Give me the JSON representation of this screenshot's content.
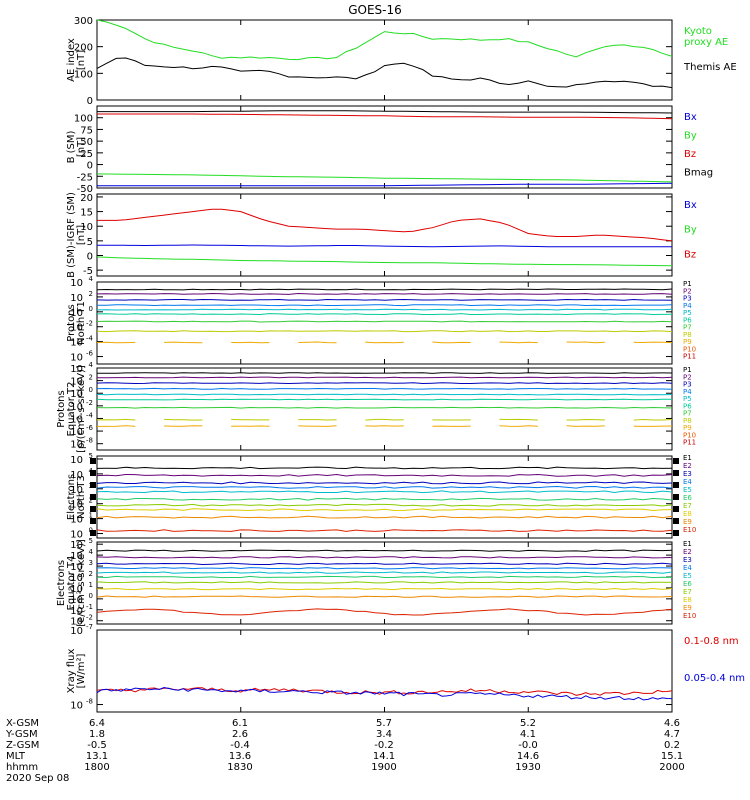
{
  "title": "GOES-16",
  "colors": {
    "black": "#000000",
    "blue": "#0000dd",
    "green": "#22dd22",
    "red": "#dd0000",
    "P": [
      "#000000",
      "#660077",
      "#0000bb",
      "#0077ee",
      "#00bbcc",
      "#00cc99",
      "#33cc33",
      "#bbcc00",
      "#eeaa00",
      "#ee5500",
      "#cc0000"
    ],
    "E": [
      "#000000",
      "#660077",
      "#0000bb",
      "#0077ee",
      "#00bbcc",
      "#22cc66",
      "#88cc00",
      "#ddcc00",
      "#ee8800",
      "#dd2200",
      "#aa0000"
    ]
  },
  "chart_data": [
    {
      "type": "line",
      "panel": "ae",
      "ylabel": "AE index\n[nT]",
      "ylim": [
        0,
        300
      ],
      "yticks": [
        "0",
        "100",
        "200",
        "300"
      ],
      "ytick_values": [
        0,
        100,
        200,
        300
      ],
      "x": [
        0,
        5,
        10,
        15,
        20,
        25,
        30,
        35,
        40,
        45,
        50,
        55,
        60,
        65,
        70,
        75,
        80,
        85,
        90,
        95,
        100,
        105,
        110,
        115,
        120
      ],
      "series": [
        {
          "name": "Kyoto\nproxy AE",
          "color": "green",
          "values": [
            300,
            280,
            230,
            200,
            185,
            160,
            160,
            160,
            155,
            155,
            160,
            205,
            255,
            250,
            230,
            230,
            225,
            230,
            215,
            190,
            160,
            200,
            210,
            195,
            160
          ]
        },
        {
          "name": "Themis AE",
          "color": "black",
          "values": [
            120,
            165,
            130,
            125,
            120,
            125,
            105,
            110,
            90,
            85,
            85,
            80,
            130,
            140,
            90,
            75,
            80,
            60,
            70,
            45,
            55,
            75,
            70,
            55,
            50
          ]
        }
      ]
    },
    {
      "type": "line",
      "panel": "bsm",
      "ylabel": "B (SM)\n[nT]",
      "ylim": [
        -50,
        125
      ],
      "yticks": [
        "-50",
        "-25",
        "0",
        "25",
        "50",
        "75",
        "100"
      ],
      "ytick_values": [
        -50,
        -25,
        0,
        25,
        50,
        75,
        100
      ],
      "x": [
        0,
        10,
        20,
        30,
        40,
        50,
        60,
        70,
        80,
        90,
        100,
        110,
        120
      ],
      "series": [
        {
          "name": "Bx",
          "color": "blue",
          "values": [
            -45,
            -45,
            -45,
            -45,
            -45,
            -45,
            -45,
            -44,
            -43,
            -42,
            -42,
            -41,
            -40
          ]
        },
        {
          "name": "By",
          "color": "green",
          "values": [
            -20,
            -21,
            -22,
            -24,
            -26,
            -27,
            -29,
            -30,
            -31,
            -32,
            -33,
            -35,
            -37
          ]
        },
        {
          "name": "Bz",
          "color": "red",
          "values": [
            108,
            108,
            108,
            107,
            106,
            105,
            104,
            102,
            102,
            101,
            101,
            100,
            98
          ]
        },
        {
          "name": "Bmag",
          "color": "black",
          "values": [
            113,
            113,
            113,
            114,
            115,
            115,
            114,
            113,
            112,
            112,
            112,
            111,
            110
          ]
        }
      ]
    },
    {
      "type": "line",
      "panel": "igrf",
      "ylabel": "B (SM)-IGRF (SM)\n[nT]",
      "ylim": [
        -7,
        21
      ],
      "yticks": [
        "-5",
        "0",
        "5",
        "10",
        "15",
        "20"
      ],
      "ytick_values": [
        -5,
        0,
        5,
        10,
        15,
        20
      ],
      "x": [
        0,
        5,
        10,
        15,
        20,
        25,
        30,
        35,
        40,
        45,
        50,
        55,
        60,
        65,
        70,
        75,
        80,
        85,
        90,
        95,
        100,
        105,
        110,
        115,
        120
      ],
      "series": [
        {
          "name": "Bx",
          "color": "blue",
          "values": [
            3.5,
            3.5,
            3.4,
            3.5,
            3.6,
            3.5,
            3.4,
            3.3,
            3.2,
            3.3,
            3.4,
            3.4,
            3.2,
            3.1,
            3.0,
            3.1,
            3.2,
            3.3,
            3.1,
            3.0,
            3.0,
            3.0,
            3.0,
            3.0,
            3.0
          ]
        },
        {
          "name": "By",
          "color": "green",
          "values": [
            -0.5,
            -0.8,
            -1.0,
            -1.2,
            -1.3,
            -1.5,
            -1.7,
            -1.8,
            -1.9,
            -2.0,
            -2.1,
            -2.3,
            -2.4,
            -2.5,
            -2.5,
            -2.6,
            -2.8,
            -2.9,
            -3.0,
            -3.1,
            -3.1,
            -3.2,
            -3.3,
            -3.4,
            -3.5
          ]
        },
        {
          "name": "Bz",
          "color": "red",
          "values": [
            12,
            12,
            13,
            14,
            15,
            16,
            15,
            12,
            10,
            9.5,
            9,
            9,
            8.5,
            8,
            9.5,
            12,
            12.5,
            11,
            7.5,
            6.5,
            6.5,
            7,
            6.5,
            6,
            5
          ]
        }
      ]
    },
    {
      "type": "line",
      "panel": "protons1",
      "log": true,
      "ylabel": "Protons\nNorth T1",
      "ylim": [
        -7,
        4
      ],
      "yticks": [
        "10",
        "10",
        "10",
        "10",
        "10",
        "10"
      ],
      "ytick_exponents": [
        "4",
        "2",
        "0",
        "-2",
        "-4",
        "-6"
      ],
      "ytick_values": [
        4,
        2,
        0,
        -2,
        -4,
        -6
      ],
      "labels": [
        "P1",
        "P2",
        "P3",
        "P4",
        "P5",
        "P6",
        "P7",
        "P8",
        "P9",
        "P10",
        "P11"
      ],
      "levels": [
        3.0,
        2.4,
        1.6,
        0.9,
        0.3,
        -0.3,
        -1.3,
        -2.6,
        -4.1,
        null,
        null
      ]
    },
    {
      "type": "line",
      "panel": "protons2",
      "log": true,
      "ylabel": "Protons\nEquator T2\n[p/(cm²-s-sr-keV)]",
      "ylim": [
        -9,
        4
      ],
      "yticks": [
        "10",
        "10",
        "10",
        "10",
        "10",
        "10",
        "10"
      ],
      "ytick_exponents": [
        "4",
        "2",
        "0",
        "-2",
        "-4",
        "-6",
        "-8"
      ],
      "ytick_values": [
        4,
        2,
        0,
        -2,
        -4,
        -6,
        -8
      ],
      "labels": [
        "P1",
        "P2",
        "P3",
        "P4",
        "P5",
        "P6",
        "P7",
        "P8",
        "P9",
        "P10",
        "P11"
      ],
      "levels": [
        3.2,
        2.5,
        1.6,
        0.7,
        -0.2,
        -1.0,
        -2.3,
        -4.2,
        -5.2,
        null,
        null
      ]
    },
    {
      "type": "line",
      "panel": "electrons1",
      "log": true,
      "ylabel": "Electrons\nNorth T3",
      "ylim": [
        -0.3,
        5.2
      ],
      "yticks": [
        "10",
        "10",
        "10",
        "10",
        "10",
        "10"
      ],
      "ytick_exponents": [
        "5",
        "4",
        "3",
        "2",
        "1",
        "0"
      ],
      "ytick_values": [
        5,
        4,
        3,
        2,
        1,
        0
      ],
      "labels": [
        "E1",
        "E2",
        "E3",
        "E4",
        "E5",
        "E6",
        "E7",
        "E8",
        "E9",
        "E10"
      ],
      "levels": [
        4.4,
        3.9,
        3.4,
        3.1,
        2.8,
        2.3,
        1.9,
        1.6,
        1.1,
        0.2
      ]
    },
    {
      "type": "line",
      "panel": "electrons2",
      "log": true,
      "ylabel": "Electrons\nEquator T4\n[e/(cm²-s-sr-keV)]",
      "ylim": [
        -2.3,
        5.2
      ],
      "yticks": [
        "10",
        "10",
        "10",
        "10",
        "10",
        "10",
        "10",
        "10"
      ],
      "ytick_exponents": [
        "5",
        "4",
        "3",
        "2",
        "1",
        "0",
        "-1",
        "-2"
      ],
      "ytick_values": [
        5,
        4,
        3,
        2,
        1,
        0,
        -1,
        -2
      ],
      "labels": [
        "E1",
        "E2",
        "E3",
        "E4",
        "E5",
        "E6",
        "E7",
        "E8",
        "E9",
        "E10"
      ],
      "levels": [
        4.4,
        3.8,
        3.2,
        2.8,
        2.4,
        2.0,
        1.5,
        0.9,
        0.2,
        -1.2
      ]
    },
    {
      "type": "line",
      "panel": "xray",
      "log": true,
      "ylabel": "Xray flux\n[W/m²]",
      "ylim": [
        -8.1,
        -7
      ],
      "yticks": [
        "10",
        "10"
      ],
      "ytick_exponents": [
        "-7",
        "-8"
      ],
      "ytick_values": [
        -7,
        -8
      ],
      "x": [
        0,
        10,
        20,
        30,
        40,
        50,
        60,
        70,
        80,
        90,
        100,
        110,
        120
      ],
      "series": [
        {
          "name": "0.1-0.8 nm",
          "color": "red",
          "values": [
            -7.82,
            -7.8,
            -7.79,
            -7.81,
            -7.8,
            -7.83,
            -7.84,
            -7.83,
            -7.81,
            -7.83,
            -7.86,
            -7.85,
            -7.82
          ]
        },
        {
          "name": "0.05-0.4 nm",
          "color": "blue",
          "values": [
            -7.82,
            -7.79,
            -7.8,
            -7.82,
            -7.82,
            -7.84,
            -7.85,
            -7.87,
            -7.86,
            -7.88,
            -7.9,
            -7.91,
            -7.93
          ]
        }
      ]
    }
  ],
  "ephemeris": {
    "row_labels": [
      "X-GSM",
      "Y-GSM",
      "Z-GSM",
      "MLT",
      "hhmm"
    ],
    "columns": [
      [
        "6.4",
        "1.8",
        "-0.5",
        "13.1",
        "1800"
      ],
      [
        "6.1",
        "2.6",
        "-0.4",
        "13.6",
        "1830"
      ],
      [
        "5.7",
        "3.4",
        "-0.2",
        "14.1",
        "1900"
      ],
      [
        "5.2",
        "4.1",
        "-0.0",
        "14.6",
        "1930"
      ],
      [
        "4.6",
        "4.7",
        "0.2",
        "15.1",
        "2000"
      ]
    ],
    "date": "2020 Sep 08"
  }
}
